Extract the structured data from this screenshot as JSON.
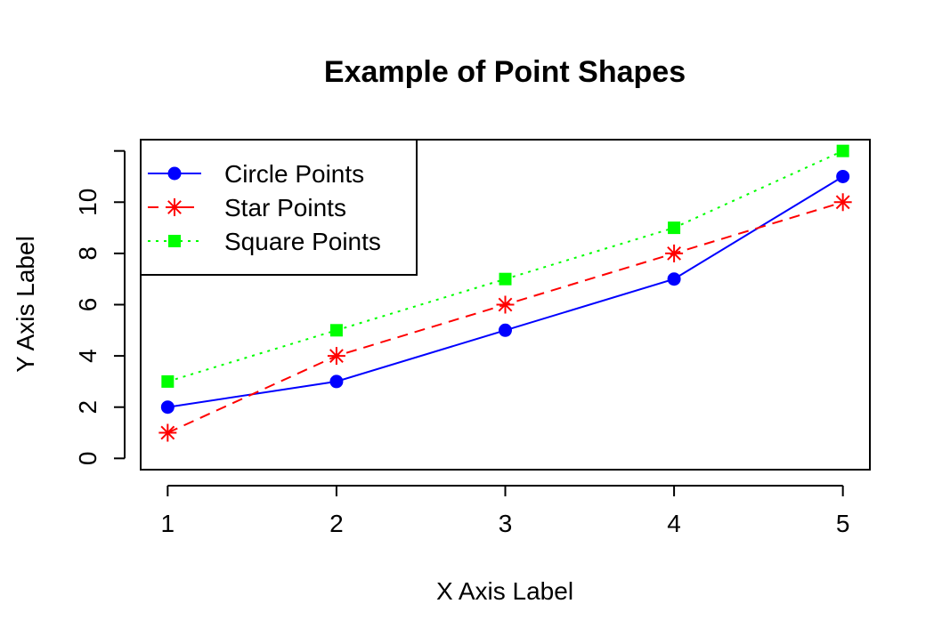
{
  "chart_data": {
    "type": "line",
    "title": "Example of Point Shapes",
    "xlabel": "X Axis Label",
    "ylabel": "Y Axis Label",
    "x": [
      1,
      2,
      3,
      4,
      5
    ],
    "xlim": [
      0.84,
      5.16
    ],
    "ylim": [
      -0.44,
      12.44
    ],
    "xticks": [
      1,
      2,
      3,
      4,
      5
    ],
    "yticks": [
      0,
      2,
      4,
      6,
      8,
      10
    ],
    "grid": false,
    "legend_position": "top-left",
    "series": [
      {
        "name": "Circle Points",
        "values": [
          2,
          3,
          5,
          7,
          11
        ],
        "color": "#0000ff",
        "line_style": "solid",
        "marker": "circle"
      },
      {
        "name": "Star Points",
        "values": [
          1,
          4,
          6,
          8,
          10
        ],
        "color": "#ff0000",
        "line_style": "dashed",
        "marker": "star"
      },
      {
        "name": "Square Points",
        "values": [
          3,
          5,
          7,
          9,
          12
        ],
        "color": "#00ff00",
        "line_style": "dotted",
        "marker": "square"
      }
    ]
  }
}
